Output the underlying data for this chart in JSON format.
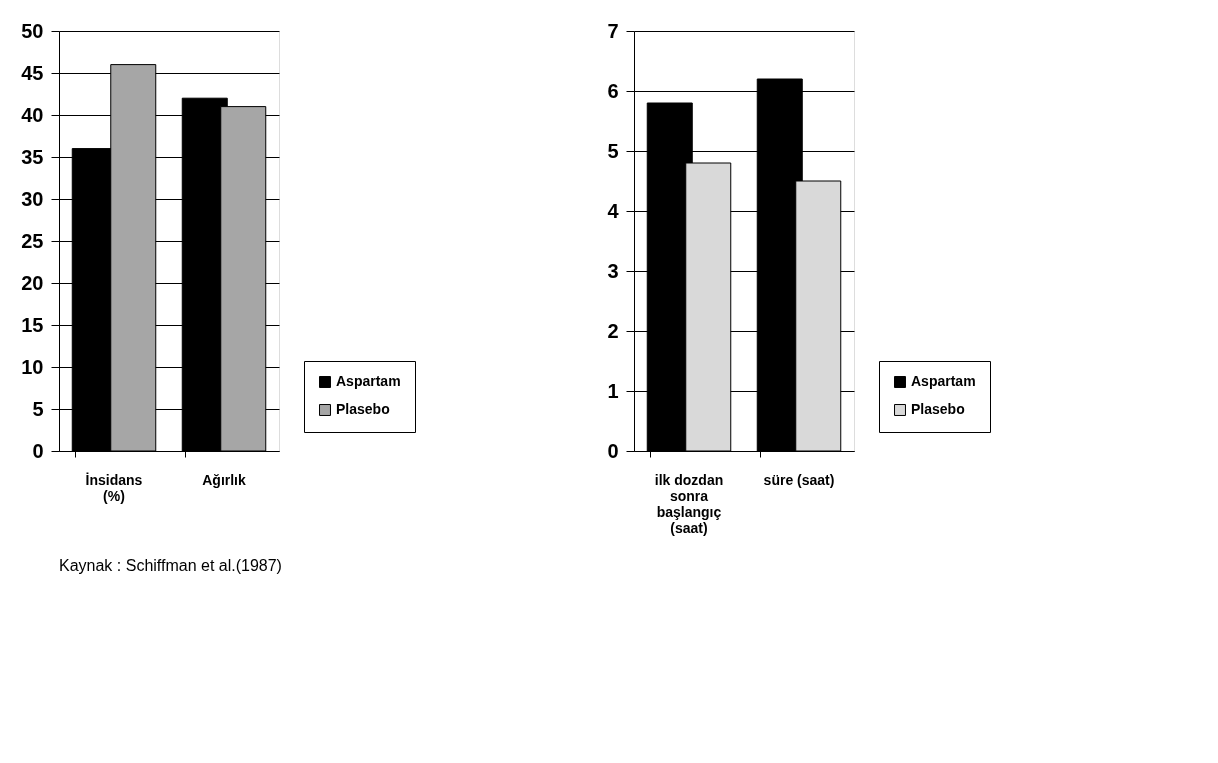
{
  "chart_data": [
    {
      "type": "bar",
      "categories": [
        "İnsidans (%)",
        "Ağırlık"
      ],
      "series": [
        {
          "name": "Aspartam",
          "color": "#000000",
          "values": [
            36,
            42
          ]
        },
        {
          "name": "Plasebo",
          "color": "#a6a6a6",
          "values": [
            46,
            41
          ]
        }
      ],
      "ylim": [
        0,
        50
      ],
      "yticks": [
        0,
        5,
        10,
        15,
        20,
        25,
        30,
        35,
        40,
        45,
        50
      ],
      "grid": "y",
      "legend": "bottom right",
      "annotations": [
        "Kaynak : Schiffman et al.(1987)"
      ]
    },
    {
      "type": "bar",
      "categories": [
        "ilk dozdan sonra başlangıç (saat)",
        "süre (saat)"
      ],
      "series": [
        {
          "name": "Aspartam",
          "color": "#000000",
          "values": [
            5.8,
            6.2
          ]
        },
        {
          "name": "Plasebo",
          "color": "#d9d9d9",
          "values": [
            4.8,
            4.5
          ]
        }
      ],
      "ylim": [
        0,
        7
      ],
      "yticks": [
        0,
        1,
        2,
        3,
        4,
        5,
        6,
        7
      ],
      "grid": "y",
      "legend": "bottom right"
    }
  ]
}
